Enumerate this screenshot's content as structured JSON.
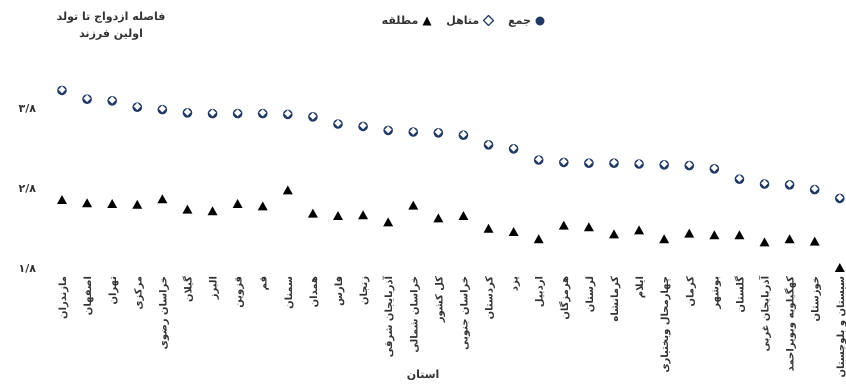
{
  "chart_data": {
    "type": "scatter",
    "ylabel": "فاصله ازدواج تا تولد اولین فرزند",
    "xlabel": "استان",
    "ylim": [
      1.8,
      4.1
    ],
    "yticks": [
      "۱/۸",
      "۲/۸",
      "۳/۸"
    ],
    "ytick_values": [
      1.8,
      2.8,
      3.8
    ],
    "grid": false,
    "legend_position": "top",
    "categories": [
      "مازندران",
      "اصفهان",
      "تهران",
      "مرکزی",
      "خراسان رضوی",
      "گیلان",
      "البرز",
      "قزوین",
      "قم",
      "سمنان",
      "همدان",
      "فارس",
      "زنجان",
      "آذربایجان شرقی",
      "خراسان شمالی",
      "کل کشور",
      "خراسان جنوبی",
      "کردستان",
      "یزد",
      "اردبیل",
      "هرمزگان",
      "لرستان",
      "کرمانشاه",
      "ایلام",
      "چهارمحال وبختیاری",
      "کرمان",
      "بوشهر",
      "گلستان",
      "آذربایجان غربی",
      "کهگیلویه وبویراحمد",
      "خوزستان",
      "سیستان و بلوچستان"
    ],
    "series": [
      {
        "name": "جمع",
        "marker": "circle",
        "color": "#1f3864",
        "values": [
          4.02,
          3.91,
          3.89,
          3.81,
          3.78,
          3.74,
          3.73,
          3.73,
          3.73,
          3.72,
          3.69,
          3.6,
          3.57,
          3.52,
          3.5,
          3.49,
          3.46,
          3.34,
          3.29,
          3.15,
          3.12,
          3.11,
          3.11,
          3.1,
          3.09,
          3.08,
          3.04,
          2.91,
          2.85,
          2.84,
          2.78,
          2.67
        ]
      },
      {
        "name": "متاهل",
        "marker": "diamond",
        "color": "#1f3864",
        "values": [
          4.03,
          3.92,
          3.9,
          3.82,
          3.79,
          3.75,
          3.74,
          3.74,
          3.74,
          3.73,
          3.7,
          3.61,
          3.58,
          3.53,
          3.51,
          3.5,
          3.47,
          3.35,
          3.3,
          3.16,
          3.13,
          3.12,
          3.12,
          3.11,
          3.1,
          3.09,
          3.05,
          2.92,
          2.86,
          2.85,
          2.79,
          2.68
        ]
      },
      {
        "name": "مطلقه",
        "marker": "triangle",
        "color": "#000000",
        "values": [
          2.65,
          2.61,
          2.6,
          2.59,
          2.66,
          2.53,
          2.51,
          2.6,
          2.57,
          2.77,
          2.48,
          2.45,
          2.46,
          2.37,
          2.58,
          2.42,
          2.45,
          2.29,
          2.25,
          2.16,
          2.33,
          2.31,
          2.22,
          2.27,
          2.16,
          2.23,
          2.21,
          2.21,
          2.12,
          2.16,
          2.13,
          1.8
        ]
      }
    ]
  }
}
